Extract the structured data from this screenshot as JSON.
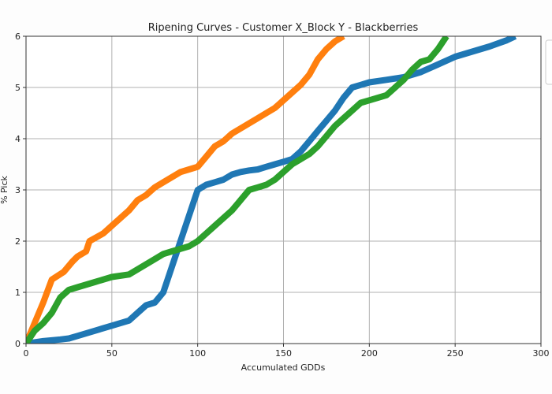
{
  "chart_data": {
    "type": "line",
    "title": "Ripening Curves - Customer X_Block Y - Blackberries",
    "xlabel": "Accumulated GDDs",
    "ylabel": "% Pick",
    "xlim": [
      0,
      300
    ],
    "ylim": [
      0,
      6
    ],
    "xticks": [
      0,
      50,
      100,
      150,
      200,
      250,
      300
    ],
    "yticks": [
      0,
      1,
      2,
      3,
      4,
      5,
      6
    ],
    "grid": true,
    "legend": "top-right (clipped)",
    "series": [
      {
        "color": "#ff7f0e",
        "x": [
          0,
          5,
          10,
          15,
          22,
          27,
          30,
          35,
          37,
          45,
          50,
          55,
          60,
          65,
          70,
          75,
          80,
          85,
          90,
          95,
          100,
          105,
          110,
          115,
          120,
          125,
          130,
          135,
          140,
          145,
          150,
          155,
          160,
          165,
          170,
          175,
          180,
          185
        ],
        "y": [
          0,
          0.4,
          0.8,
          1.25,
          1.4,
          1.6,
          1.7,
          1.8,
          2.0,
          2.15,
          2.3,
          2.45,
          2.6,
          2.8,
          2.9,
          3.05,
          3.15,
          3.25,
          3.35,
          3.4,
          3.45,
          3.65,
          3.85,
          3.95,
          4.1,
          4.2,
          4.3,
          4.4,
          4.5,
          4.6,
          4.75,
          4.9,
          5.05,
          5.25,
          5.55,
          5.75,
          5.9,
          6.0
        ]
      },
      {
        "color": "#1f77b4",
        "x": [
          0,
          10,
          20,
          25,
          30,
          40,
          50,
          60,
          65,
          70,
          75,
          80,
          85,
          90,
          95,
          100,
          105,
          110,
          115,
          120,
          125,
          130,
          135,
          140,
          145,
          150,
          155,
          160,
          165,
          170,
          175,
          180,
          185,
          190,
          195,
          200,
          210,
          220,
          230,
          240,
          250,
          260,
          270,
          280,
          285
        ],
        "y": [
          0,
          0.05,
          0.08,
          0.1,
          0.15,
          0.25,
          0.35,
          0.45,
          0.6,
          0.75,
          0.8,
          1.0,
          1.5,
          2.0,
          2.5,
          3.0,
          3.1,
          3.15,
          3.2,
          3.3,
          3.35,
          3.38,
          3.4,
          3.45,
          3.5,
          3.55,
          3.6,
          3.75,
          3.95,
          4.15,
          4.35,
          4.55,
          4.8,
          5.0,
          5.05,
          5.1,
          5.15,
          5.2,
          5.3,
          5.45,
          5.6,
          5.7,
          5.8,
          5.92,
          6.0
        ]
      },
      {
        "color": "#2ca02c",
        "x": [
          0,
          5,
          10,
          15,
          20,
          25,
          30,
          40,
          50,
          60,
          65,
          70,
          75,
          80,
          85,
          90,
          95,
          100,
          105,
          110,
          115,
          120,
          125,
          130,
          135,
          140,
          145,
          150,
          155,
          160,
          165,
          170,
          175,
          180,
          185,
          190,
          195,
          200,
          210,
          220,
          225,
          230,
          235,
          240,
          245
        ],
        "y": [
          0,
          0.25,
          0.4,
          0.6,
          0.9,
          1.05,
          1.1,
          1.2,
          1.3,
          1.35,
          1.45,
          1.55,
          1.65,
          1.75,
          1.8,
          1.85,
          1.9,
          2.0,
          2.15,
          2.3,
          2.45,
          2.6,
          2.8,
          3.0,
          3.05,
          3.1,
          3.2,
          3.35,
          3.5,
          3.6,
          3.7,
          3.85,
          4.05,
          4.25,
          4.4,
          4.55,
          4.7,
          4.75,
          4.85,
          5.15,
          5.35,
          5.5,
          5.55,
          5.75,
          6.0
        ]
      }
    ]
  }
}
